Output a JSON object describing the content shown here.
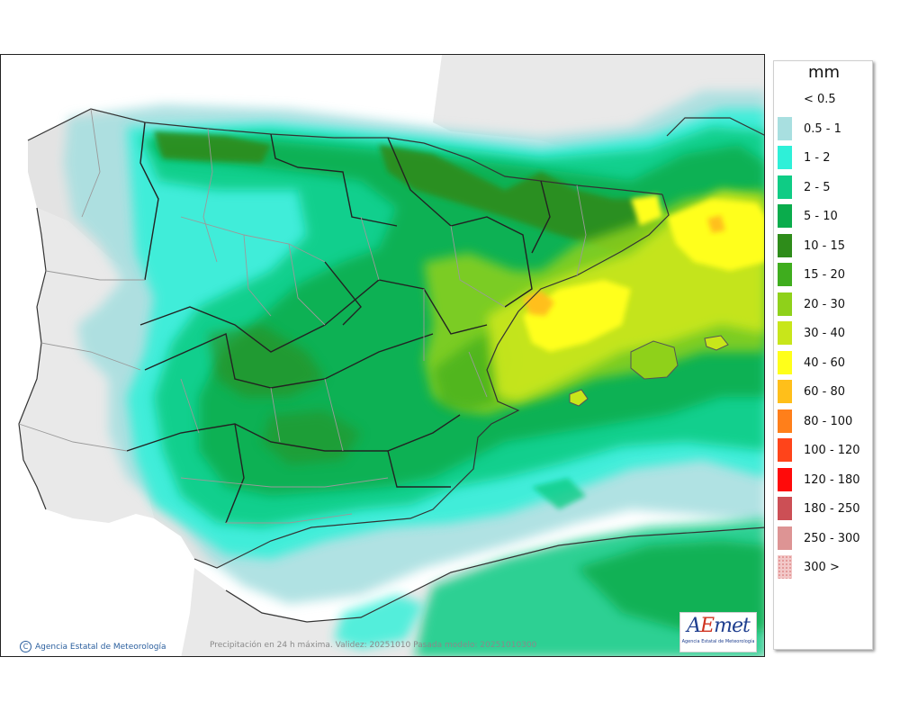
{
  "legend": {
    "title": "mm",
    "items": [
      {
        "label": "< 0.5",
        "color": "#ffffff"
      },
      {
        "label": "0.5 - 1",
        "color": "#a8dfe0"
      },
      {
        "label": "1 - 2",
        "color": "#2ef0d8"
      },
      {
        "label": "2 - 5",
        "color": "#0fcc85"
      },
      {
        "label": "5 - 10",
        "color": "#0aac4c"
      },
      {
        "label": "10 - 15",
        "color": "#2e8c1a"
      },
      {
        "label": "15 - 20",
        "color": "#3fad1e"
      },
      {
        "label": "20 - 30",
        "color": "#8fd11a"
      },
      {
        "label": "30 - 40",
        "color": "#c8e61a"
      },
      {
        "label": "40 - 60",
        "color": "#ffff1a"
      },
      {
        "label": "60 - 80",
        "color": "#ffbf1a"
      },
      {
        "label": "80 - 100",
        "color": "#ff7f1a"
      },
      {
        "label": "100 - 120",
        "color": "#ff441a"
      },
      {
        "label": "120 - 180",
        "color": "#ff0a0a"
      },
      {
        "label": "180 - 250",
        "color": "#cc4f55"
      },
      {
        "label": "250 - 300",
        "color": "#dd9494"
      },
      {
        "label": "300 >",
        "color": "#f2c8c8"
      }
    ]
  },
  "footer": {
    "copyright": "Agencia Estatal de Meteorología",
    "caption": "Precipitación en 24 h máxima. Validez: 20251010 Pasada modelo: 20251010300"
  },
  "logo": {
    "text_main": "AEmet",
    "text_sub": "Agencia Estatal de Meteorología"
  },
  "colors": {
    "land": "#e9e9e9",
    "sea": "#ffffff",
    "border": "#222222",
    "province_border": "#9a9a9a"
  }
}
